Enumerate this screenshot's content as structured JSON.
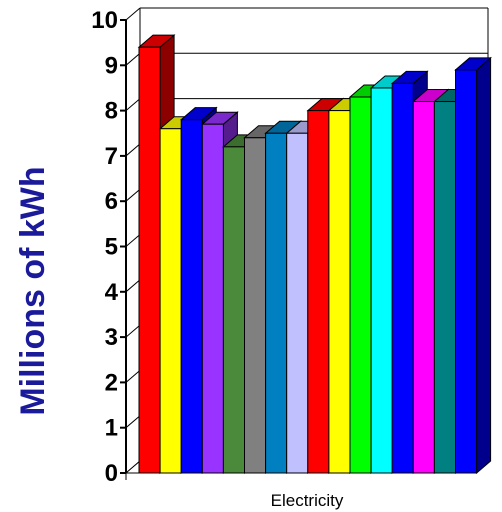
{
  "chart_data": {
    "type": "bar",
    "categories": [
      "Electricity"
    ],
    "series": [
      {
        "values": [
          9.4
        ],
        "color": "#ff0000"
      },
      {
        "values": [
          7.6
        ],
        "color": "#ffff00"
      },
      {
        "values": [
          7.8
        ],
        "color": "#0000ff"
      },
      {
        "values": [
          7.7
        ],
        "color": "#9933ff"
      },
      {
        "values": [
          7.2
        ],
        "color": "#4a8a3a"
      },
      {
        "values": [
          7.4
        ],
        "color": "#808080"
      },
      {
        "values": [
          7.5
        ],
        "color": "#0080c0"
      },
      {
        "values": [
          7.5
        ],
        "color": "#c0c0ff"
      },
      {
        "values": [
          8.0
        ],
        "color": "#ff0000"
      },
      {
        "values": [
          8.0
        ],
        "color": "#ffff00"
      },
      {
        "values": [
          8.3
        ],
        "color": "#00ff00"
      },
      {
        "values": [
          8.5
        ],
        "color": "#00ffff"
      },
      {
        "values": [
          8.6
        ],
        "color": "#0000ff"
      },
      {
        "values": [
          8.2
        ],
        "color": "#ff00ff"
      },
      {
        "values": [
          8.2
        ],
        "color": "#008080"
      },
      {
        "values": [
          8.9
        ],
        "color": "#0000ff"
      }
    ],
    "title": "",
    "xlabel": "Electricity",
    "ylabel": "Millions of kWh",
    "ylabel_color": "#1a1a9a",
    "ylim": [
      0,
      10
    ],
    "yticks": [
      "0",
      "1",
      "2",
      "3",
      "4",
      "5",
      "6",
      "7",
      "8",
      "9",
      "10"
    ],
    "grid": true,
    "legend": "none",
    "style": "3d"
  }
}
